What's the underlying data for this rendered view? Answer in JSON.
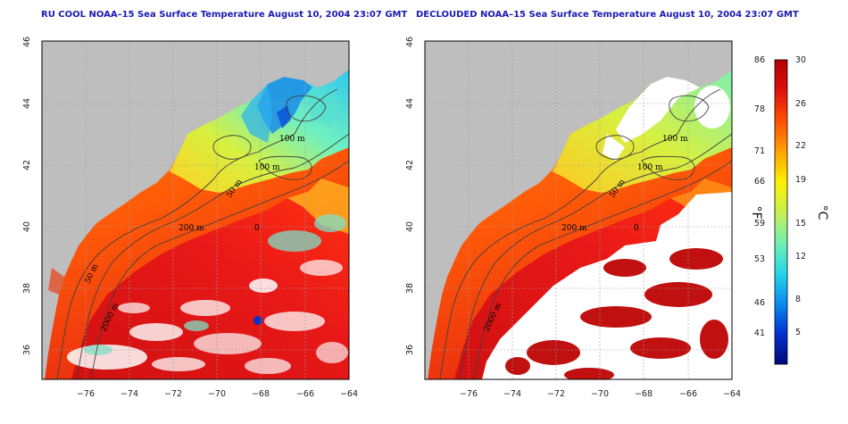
{
  "panels": [
    {
      "title": "RU COOL NOAA–15 Sea Surface Temperature August 10, 2004 23:07 GMT",
      "contour_labels": [
        "100 m",
        "100 m",
        "50 m",
        "200 m",
        "0",
        "50 m",
        "2000 m"
      ]
    },
    {
      "title": "DECLOUDED NOAA–15 Sea Surface Temperature August 10, 2004 23:07 GMT",
      "contour_labels": [
        "100 m",
        "100 m",
        "50 m",
        "200 m",
        "0",
        "2000 m"
      ]
    }
  ],
  "axes": {
    "lon_ticks": [
      "−76",
      "−74",
      "−72",
      "−70",
      "−68",
      "−66",
      "−64"
    ],
    "lat_ticks": [
      "36",
      "38",
      "40",
      "42",
      "44",
      "46"
    ]
  },
  "colorbar": {
    "fahrenheit_ticks": [
      "86",
      "78",
      "71",
      "66",
      "59",
      "53",
      "46",
      "41"
    ],
    "celsius_ticks": [
      "30",
      "26",
      "22",
      "19",
      "15",
      "12",
      "8",
      "5"
    ],
    "fahrenheit_unit": "°F",
    "celsius_unit": "°C",
    "colors": [
      "#000a7a",
      "#0030d0",
      "#0a8cf0",
      "#25d8e8",
      "#72f0b0",
      "#c8f050",
      "#fff000",
      "#ffa000",
      "#ff5000",
      "#e01010",
      "#b00000"
    ]
  },
  "colors": {
    "land": "#bebebe",
    "cloud": "#ffffff",
    "title": "#1a1ab4",
    "contour": "#404040"
  }
}
